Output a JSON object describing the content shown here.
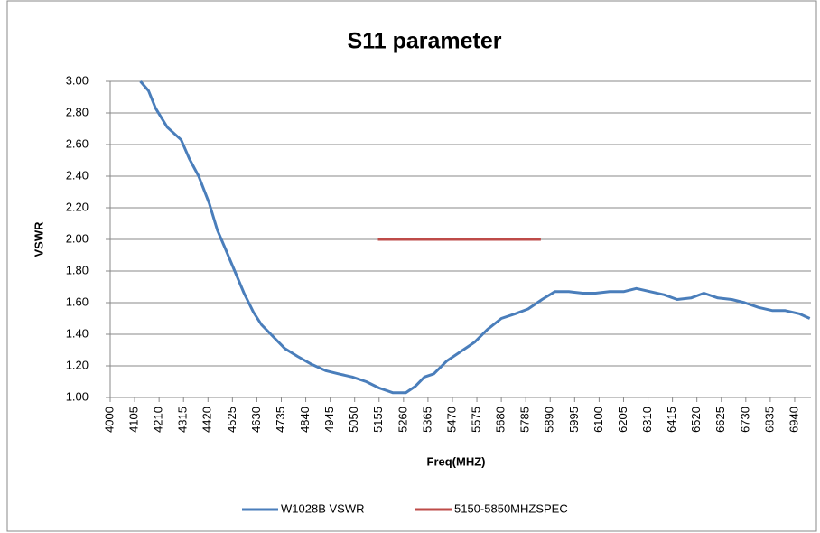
{
  "chart_data": {
    "type": "line",
    "title": "S11 parameter",
    "x_label": "Freq(MHZ)",
    "y_label": "VSWR",
    "xlim": [
      4000,
      7010
    ],
    "ylim": [
      1,
      3
    ],
    "xticks": [
      4000,
      4105,
      4210,
      4315,
      4420,
      4525,
      4630,
      4735,
      4840,
      4945,
      5050,
      5155,
      5260,
      5365,
      5470,
      5575,
      5680,
      5785,
      5890,
      5995,
      6100,
      6205,
      6310,
      6415,
      6520,
      6625,
      6730,
      6835,
      6940
    ],
    "yticks": [
      {
        "value": 1,
        "label": "1.00"
      },
      {
        "value": 1.2,
        "label": "1.20"
      },
      {
        "value": 1.4,
        "label": "1.40"
      },
      {
        "value": 1.6,
        "label": "1.60"
      },
      {
        "value": 1.8,
        "label": "1.80"
      },
      {
        "value": 2,
        "label": "2.00"
      },
      {
        "value": 2.2,
        "label": "2.20"
      },
      {
        "value": 2.4,
        "label": "2.40"
      },
      {
        "value": 2.6,
        "label": "2.60"
      },
      {
        "value": 2.8,
        "label": "2.80"
      },
      {
        "value": 3,
        "label": "3.00"
      }
    ],
    "grid": true,
    "legend": "bottom",
    "series": [
      {
        "name": "W1028B VSWR",
        "color": "#4a7ebb",
        "x": [
          4130,
          4165,
          4195,
          4245,
          4305,
          4340,
          4380,
          4425,
          4460,
          4495,
          4535,
          4575,
          4615,
          4650,
          4690,
          4750,
          4805,
          4865,
          4925,
          4980,
          5040,
          5100,
          5155,
          5215,
          5270,
          5310,
          5350,
          5390,
          5445,
          5505,
          5565,
          5620,
          5680,
          5740,
          5795,
          5855,
          5910,
          5970,
          6030,
          6085,
          6145,
          6205,
          6260,
          6320,
          6380,
          6435,
          6495,
          6550,
          6610,
          6670,
          6725,
          6785,
          6845,
          6900,
          6960,
          7005
        ],
        "values": [
          3.0,
          2.94,
          2.83,
          2.71,
          2.63,
          2.51,
          2.4,
          2.23,
          2.06,
          1.94,
          1.8,
          1.66,
          1.54,
          1.46,
          1.4,
          1.31,
          1.26,
          1.21,
          1.17,
          1.15,
          1.13,
          1.1,
          1.06,
          1.03,
          1.03,
          1.07,
          1.13,
          1.15,
          1.23,
          1.29,
          1.35,
          1.43,
          1.5,
          1.53,
          1.56,
          1.62,
          1.67,
          1.67,
          1.66,
          1.66,
          1.67,
          1.67,
          1.69,
          1.67,
          1.65,
          1.62,
          1.63,
          1.66,
          1.63,
          1.62,
          1.6,
          1.57,
          1.55,
          1.55,
          1.53,
          1.5
        ]
      },
      {
        "name": "5150-5850MHZSPEC",
        "color": "#be4b48",
        "x": [
          5150,
          5850
        ],
        "values": [
          2,
          2
        ]
      }
    ]
  }
}
